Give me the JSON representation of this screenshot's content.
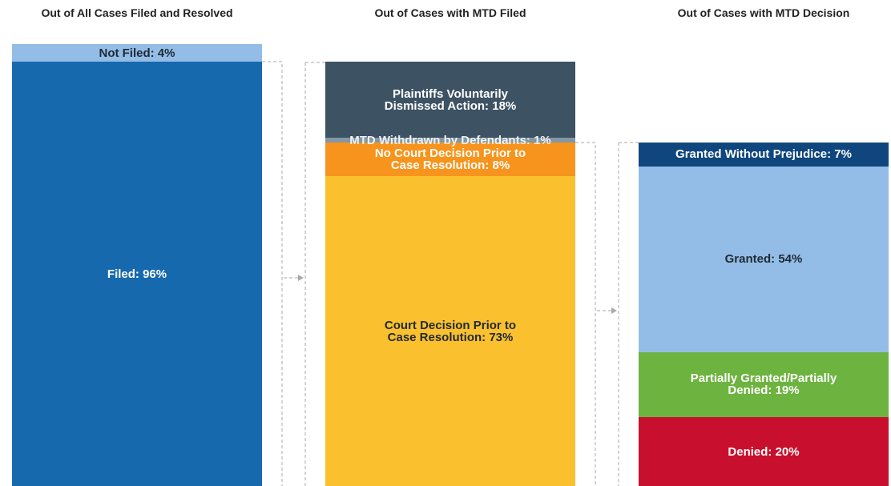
{
  "chart_data": [
    {
      "type": "stacked-column",
      "title": "Out of All Cases Filed and Resolved",
      "ylim": [
        0,
        100
      ],
      "values": [
        4,
        96
      ],
      "value_labels": [
        "Not Filed: 4%",
        "Filed: 96%"
      ],
      "colors": [
        "#93bde6",
        "#1769ae"
      ],
      "label_colors": [
        "#1f2a36",
        "#ffffff"
      ]
    },
    {
      "type": "stacked-column",
      "title": "Out of Cases with MTD Filed",
      "ylim": [
        0,
        100
      ],
      "values": [
        18,
        1,
        8,
        73
      ],
      "value_labels": [
        "Plaintiffs Voluntarily\nDismissed Action: 18%",
        "MTD Withdrawn by Defendants: 1%",
        "No Court Decision Prior to\nCase Resolution: 8%",
        "Court Decision Prior to\nCase Resolution: 73%"
      ],
      "colors": [
        "#3d5263",
        "#8397a6",
        "#f7941d",
        "#fbc02d"
      ],
      "label_colors": [
        "#ffffff",
        "#eef2f5",
        "#ffffff",
        "#1f2a36"
      ]
    },
    {
      "type": "stacked-column",
      "title": "Out of Cases with MTD Decision",
      "ylim": [
        0,
        100
      ],
      "values": [
        7,
        54,
        19,
        20
      ],
      "value_labels": [
        "Granted Without Prejudice: 7%",
        "Granted: 54%",
        "Partially Granted/Partially\nDenied: 19%",
        "Denied: 20%"
      ],
      "colors": [
        "#0f467d",
        "#93bde6",
        "#6db33f",
        "#c8102e"
      ],
      "label_colors": [
        "#ffffff",
        "#1f2a36",
        "#ffffff",
        "#ffffff"
      ]
    }
  ]
}
